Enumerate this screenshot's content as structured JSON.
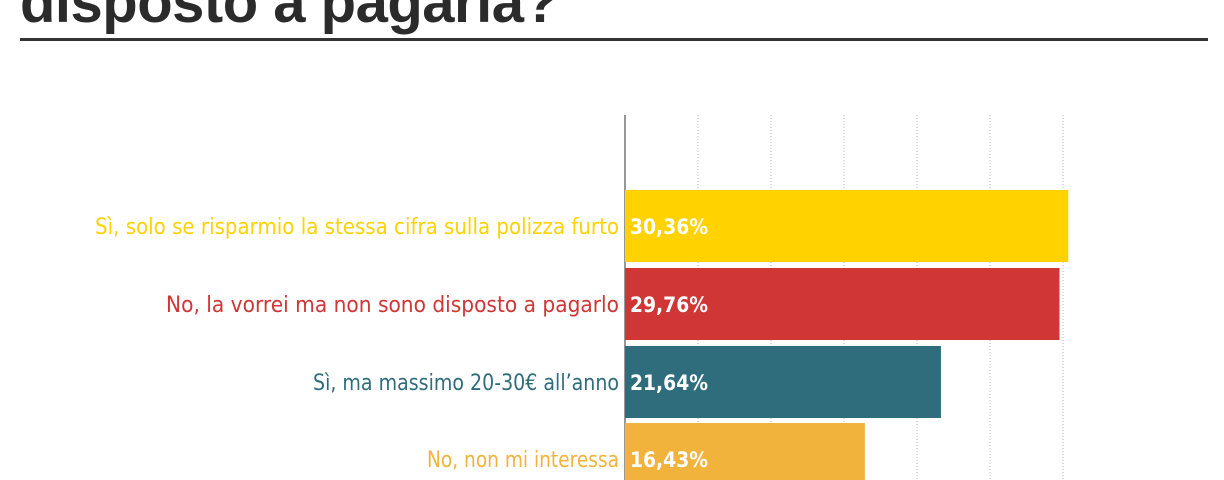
{
  "title": "disposto a pagarla?",
  "chart_data": {
    "type": "bar",
    "orientation": "horizontal",
    "categories": [
      "Sì, solo se risparmio la stessa cifra sulla polizza furto",
      "No, la vorrei ma non sono disposto a pagarlo",
      "Sì, ma massimo 20-30€ all’anno",
      "No, non mi interessa"
    ],
    "values": [
      30.36,
      29.76,
      21.64,
      16.43
    ],
    "value_labels": [
      "30,36%",
      "29,76%",
      "21,64%",
      "16,43%"
    ],
    "colors": [
      "#FFD200",
      "#D03636",
      "#2F6D7D",
      "#F2B33D"
    ],
    "xlim": [
      0,
      30
    ],
    "x_gridlines": [
      0,
      5,
      10,
      15,
      20,
      25,
      30
    ],
    "grid": true,
    "legend": "none"
  }
}
